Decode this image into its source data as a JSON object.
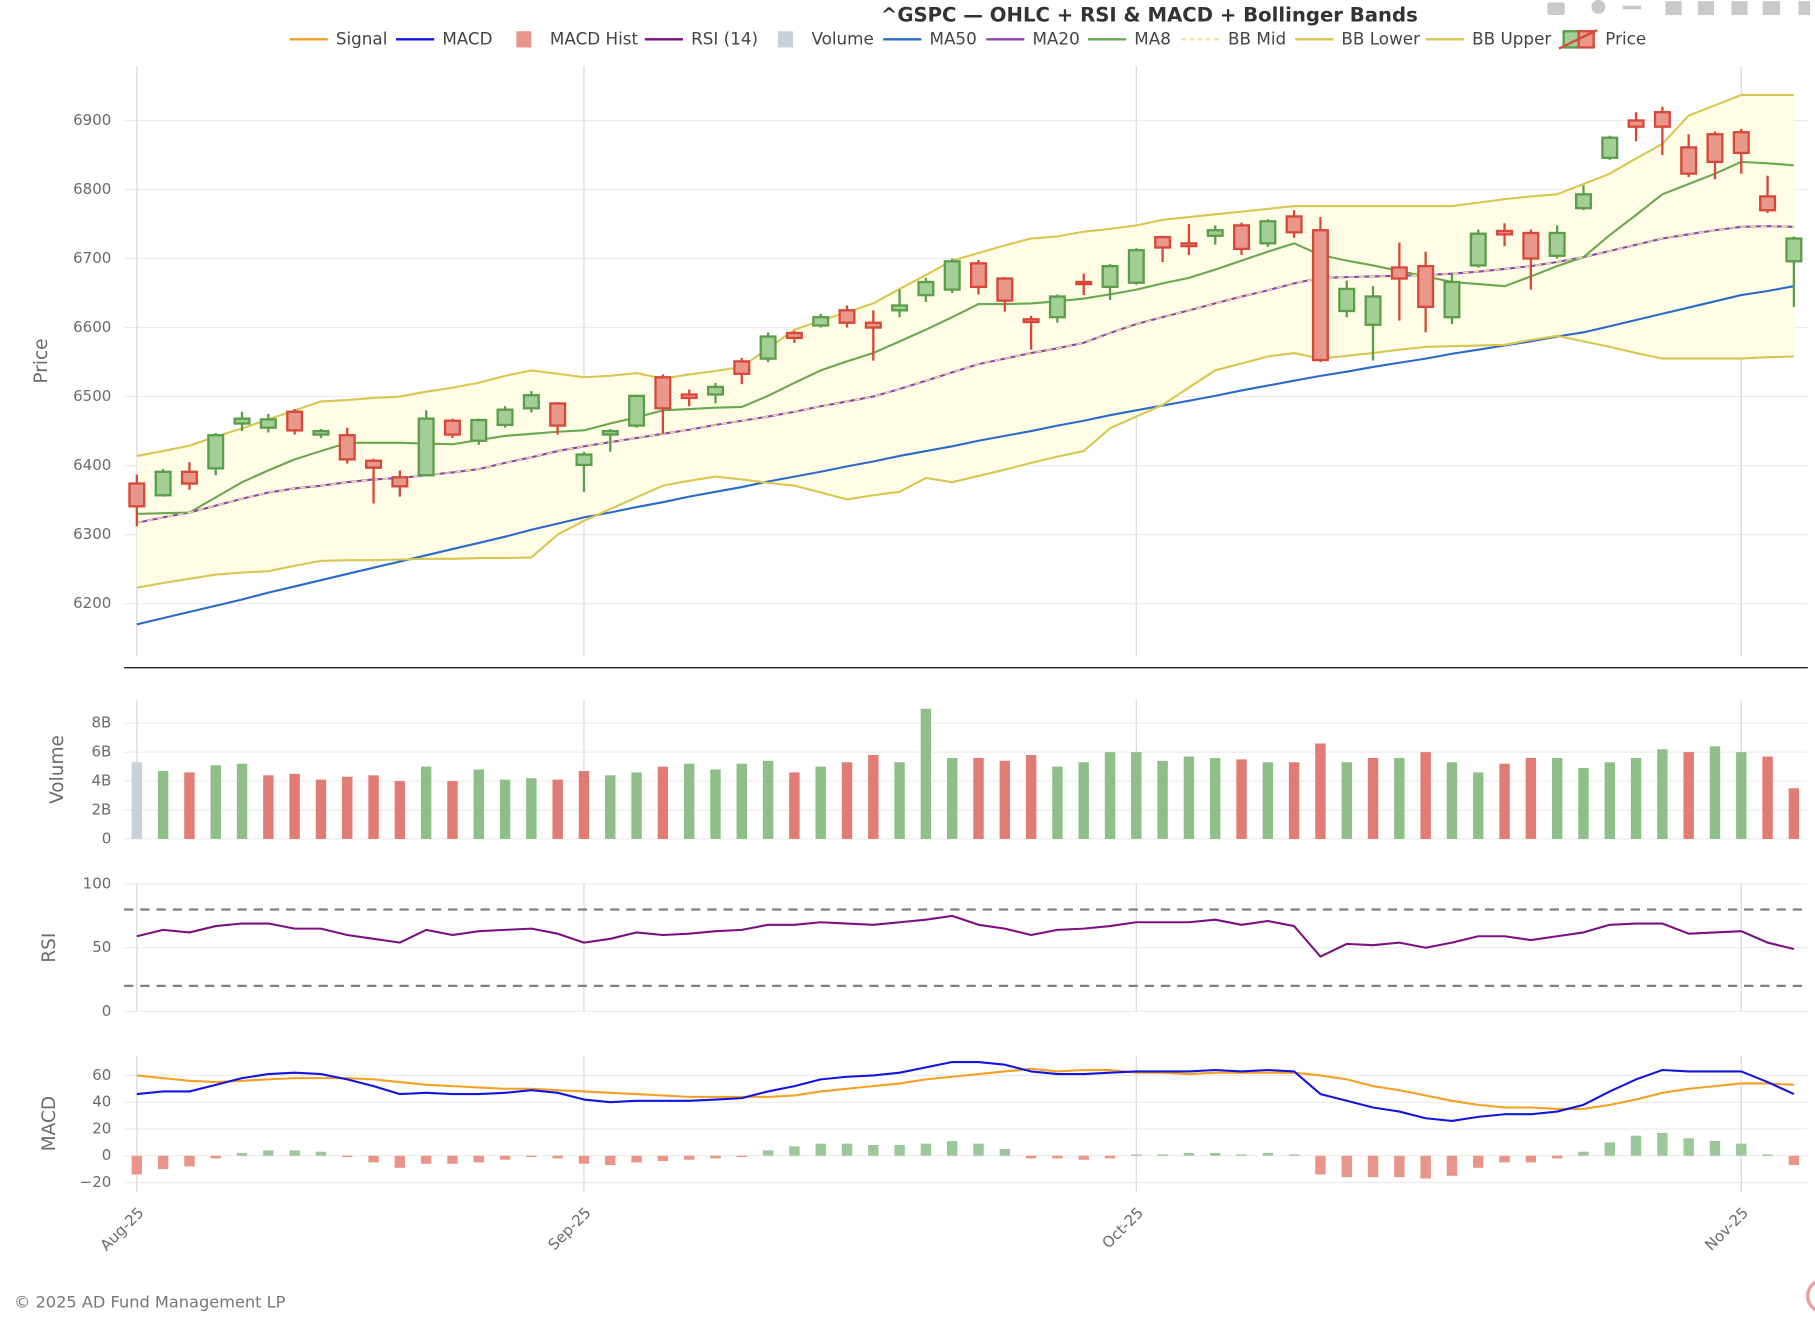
{
  "chart_data": {
    "type": "candlestick",
    "title": "^GSPC — OHLC + RSI & MACD + Bollinger Bands",
    "categories": [
      "Aug-25",
      null,
      null,
      null,
      null,
      null,
      null,
      null,
      null,
      null,
      null,
      null,
      null,
      null,
      null,
      null,
      null,
      "Sep-25",
      null,
      null,
      null,
      null,
      null,
      null,
      null,
      null,
      null,
      null,
      null,
      null,
      null,
      null,
      null,
      null,
      null,
      null,
      null,
      null,
      "Oct-25",
      null,
      null,
      null,
      null,
      null,
      null,
      null,
      null,
      null,
      null,
      null,
      null,
      null,
      null,
      null,
      null,
      null,
      null,
      null,
      null,
      null,
      null,
      "Nov-25",
      null,
      null
    ],
    "panels": {
      "price": {
        "ylabel": "Price",
        "ylim": [
          6124,
          6979
        ],
        "yticks": [
          6200,
          6300,
          6400,
          6500,
          6600,
          6700,
          6800,
          6900
        ],
        "band_fill": "#fffde6"
      },
      "volume": {
        "ylabel": "Volume",
        "ylim": [
          0,
          9.6
        ],
        "yticks": [
          0,
          {
            "value": 2,
            "label": "2B"
          },
          {
            "value": 4,
            "label": "4B"
          },
          {
            "value": 6,
            "label": "6B"
          },
          {
            "value": 8,
            "label": "8B"
          }
        ]
      },
      "rsi": {
        "ylabel": "RSI",
        "ylim": [
          0,
          100
        ],
        "yticks": [
          0,
          50,
          100
        ],
        "hlines": [
          20,
          80
        ]
      },
      "macd": {
        "ylabel": "MACD",
        "ylim": [
          -27,
          75
        ],
        "yticks": [
          {
            "value": -20,
            "label": "−20"
          },
          0,
          20,
          40,
          60
        ]
      }
    },
    "series": [
      {
        "name": "Signal",
        "panel": "macd",
        "kind": "line",
        "color": "#f5a020",
        "values": [
          60,
          58,
          56,
          55,
          56,
          57,
          58,
          58,
          58,
          57,
          55,
          53,
          52,
          51,
          50,
          50,
          49,
          48,
          47,
          46,
          45,
          44,
          44,
          44,
          44,
          45,
          48,
          50,
          52,
          54,
          57,
          59,
          61,
          63,
          65,
          63,
          64,
          64,
          62,
          62,
          61,
          62,
          62,
          62,
          62,
          60,
          57,
          52,
          49,
          45,
          41,
          38,
          36,
          36,
          35,
          35,
          38,
          42,
          47,
          50,
          52,
          54,
          54,
          53
        ]
      },
      {
        "name": "MACD",
        "panel": "macd",
        "kind": "line",
        "color": "#1414e0",
        "values": [
          46,
          48,
          48,
          53,
          58,
          61,
          62,
          61,
          57,
          52,
          46,
          47,
          46,
          46,
          47,
          49,
          47,
          42,
          40,
          41,
          41,
          41,
          42,
          43,
          48,
          52,
          57,
          59,
          60,
          62,
          66,
          70,
          70,
          68,
          63,
          61,
          61,
          62,
          63,
          63,
          63,
          64,
          63,
          64,
          63,
          46,
          41,
          36,
          33,
          28,
          26,
          29,
          31,
          31,
          33,
          38,
          48,
          57,
          64,
          63,
          63,
          63,
          55,
          46
        ]
      },
      {
        "name": "MACD Hist",
        "panel": "macd",
        "kind": "bar",
        "color": "#e8958a",
        "color_up": "#9cc79a",
        "color_down": "#e8958a",
        "values": [
          -14,
          -10,
          -8,
          -2,
          2,
          4,
          4,
          3,
          -1,
          -5,
          -9,
          -6,
          -6,
          -5,
          -3,
          -1,
          -2,
          -6,
          -7,
          -5,
          -4,
          -3,
          -2,
          -1,
          4,
          7,
          9,
          9,
          8,
          8,
          9,
          11,
          9,
          5,
          -2,
          -2,
          -3,
          -2,
          1,
          1,
          2,
          2,
          1,
          2,
          1,
          -14,
          -16,
          -16,
          -16,
          -17,
          -15,
          -9,
          -5,
          -5,
          -2,
          3,
          10,
          15,
          17,
          13,
          11,
          9,
          1,
          -7
        ]
      },
      {
        "name": "RSI (14)",
        "panel": "rsi",
        "kind": "line",
        "color": "#7b1180",
        "values": [
          59,
          64,
          62,
          67,
          69,
          69,
          65,
          65,
          60,
          57,
          54,
          64,
          60,
          63,
          64,
          65,
          61,
          54,
          57,
          62,
          60,
          61,
          63,
          64,
          68,
          68,
          70,
          69,
          68,
          70,
          72,
          75,
          68,
          65,
          60,
          64,
          65,
          67,
          70,
          70,
          70,
          72,
          68,
          71,
          67,
          43,
          53,
          52,
          54,
          50,
          54,
          59,
          59,
          56,
          59,
          62,
          68,
          69,
          69,
          61,
          62,
          63,
          54,
          49
        ]
      },
      {
        "name": "Volume",
        "panel": "volume",
        "kind": "bar",
        "color": "#c8d0d8",
        "color_up": "#8fbf88",
        "color_down": "#e07c74",
        "values": [
          5.3,
          4.7,
          4.6,
          5.1,
          5.2,
          4.4,
          4.5,
          4.1,
          4.3,
          4.4,
          4.0,
          5.0,
          4.0,
          4.8,
          4.1,
          4.2,
          4.1,
          4.7,
          4.4,
          4.6,
          5.0,
          5.2,
          4.8,
          5.2,
          5.4,
          4.6,
          5.0,
          5.3,
          5.8,
          5.3,
          9.0,
          5.6,
          5.6,
          5.4,
          5.8,
          5.0,
          5.3,
          6.0,
          6.0,
          5.4,
          5.7,
          5.6,
          5.5,
          5.3,
          5.3,
          6.6,
          5.3,
          5.6,
          5.6,
          6.0,
          5.3,
          4.6,
          5.2,
          5.6,
          5.6,
          4.9,
          5.3,
          5.6,
          6.2,
          6.0,
          6.4,
          6.0,
          5.7,
          3.5
        ]
      },
      {
        "name": "MA50",
        "panel": "price",
        "kind": "line",
        "color": "#2a6ac8",
        "values": [
          6170,
          6179,
          6188,
          6197,
          6206,
          6216,
          6225,
          6234,
          6243,
          6252,
          6261,
          6270,
          6279,
          6288,
          6297,
          6307,
          6316,
          6325,
          6332,
          6340,
          6347,
          6355,
          6362,
          6369,
          6377,
          6384,
          6391,
          6399,
          6406,
          6414,
          6421,
          6428,
          6436,
          6443,
          6450,
          6458,
          6465,
          6473,
          6480,
          6487,
          6494,
          6501,
          6509,
          6516,
          6523,
          6530,
          6536,
          6543,
          6549,
          6555,
          6562,
          6568,
          6574,
          6580,
          6587,
          6593,
          6602,
          6611,
          6620,
          6629,
          6638,
          6647,
          6653,
          6660
        ]
      },
      {
        "name": "MA20",
        "panel": "price",
        "kind": "line",
        "color": "#8e44ad",
        "values": [
          6317,
          6325,
          6332,
          6342,
          6352,
          6361,
          6367,
          6371,
          6376,
          6380,
          6382,
          6386,
          6390,
          6395,
          6404,
          6412,
          6421,
          6428,
          6434,
          6440,
          6446,
          6452,
          6459,
          6465,
          6471,
          6478,
          6486,
          6493,
          6500,
          6511,
          6523,
          6535,
          6547,
          6555,
          6563,
          6570,
          6578,
          6592,
          6605,
          6615,
          6625,
          6635,
          6645,
          6654,
          6664,
          6672,
          6673,
          6674,
          6675,
          6676,
          6678,
          6681,
          6685,
          6689,
          6695,
          6702,
          6711,
          6720,
          6729,
          6735,
          6741,
          6746,
          6747,
          6746
        ]
      },
      {
        "name": "MA8",
        "panel": "price",
        "kind": "line",
        "color": "#6aa84f",
        "values": [
          6330,
          6331,
          6332,
          6354,
          6376,
          6393,
          6409,
          6421,
          6433,
          6433,
          6433,
          6432,
          6431,
          6437,
          6443,
          6446,
          6449,
          6451,
          6461,
          6470,
          6480,
          6482,
          6484,
          6485,
          6501,
          6520,
          6538,
          6551,
          6563,
          6580,
          6597,
          6615,
          6634,
          6634,
          6635,
          6638,
          6642,
          6648,
          6655,
          6664,
          6672,
          6684,
          6697,
          6710,
          6722,
          6705,
          6697,
          6690,
          6682,
          6674,
          6666,
          6663,
          6660,
          6674,
          6689,
          6702,
          6734,
          6763,
          6793,
          6808,
          6823,
          6840,
          6838,
          6835
        ]
      },
      {
        "name": "BB Mid",
        "panel": "price",
        "kind": "line",
        "color": "#ece3a8",
        "dash": true,
        "values": [
          6317,
          6325,
          6332,
          6342,
          6352,
          6361,
          6367,
          6371,
          6376,
          6380,
          6382,
          6386,
          6390,
          6395,
          6404,
          6412,
          6421,
          6428,
          6434,
          6440,
          6446,
          6452,
          6459,
          6465,
          6471,
          6478,
          6486,
          6493,
          6500,
          6511,
          6523,
          6535,
          6547,
          6555,
          6563,
          6570,
          6578,
          6592,
          6605,
          6615,
          6625,
          6635,
          6645,
          6654,
          6664,
          6672,
          6673,
          6674,
          6675,
          6676,
          6678,
          6681,
          6685,
          6689,
          6695,
          6702,
          6711,
          6720,
          6729,
          6735,
          6741,
          6746,
          6747,
          6746
        ]
      },
      {
        "name": "BB Lower",
        "panel": "price",
        "kind": "line",
        "color": "#d9c650",
        "band": "lower",
        "values": [
          6223,
          6230,
          6236,
          6242,
          6245,
          6247,
          6255,
          6262,
          6263,
          6263,
          6264,
          6265,
          6265,
          6266,
          6266,
          6267,
          6300,
          6320,
          6337,
          6354,
          6371,
          6378,
          6384,
          6380,
          6375,
          6371,
          6361,
          6351,
          6357,
          6362,
          6382,
          6376,
          6385,
          6394,
          6404,
          6413,
          6421,
          6454,
          6471,
          6488,
          6513,
          6538,
          6548,
          6558,
          6563,
          6555,
          6559,
          6563,
          6568,
          6572,
          6573,
          6574,
          6575,
          6582,
          6588,
          6580,
          6572,
          6563,
          6555,
          6555,
          6555,
          6555,
          6557,
          6558
        ]
      },
      {
        "name": "BB Upper",
        "panel": "price",
        "kind": "line",
        "color": "#d9c650",
        "band": "upper",
        "values": [
          6414,
          6421,
          6429,
          6442,
          6454,
          6467,
          6480,
          6493,
          6495,
          6498,
          6500,
          6507,
          6513,
          6520,
          6530,
          6538,
          6533,
          6528,
          6530,
          6534,
          6526,
          6532,
          6537,
          6543,
          6570,
          6597,
          6610,
          6622,
          6635,
          6656,
          6676,
          6697,
          6708,
          6719,
          6729,
          6732,
          6739,
          6743,
          6748,
          6756,
          6760,
          6764,
          6768,
          6772,
          6776,
          6776,
          6776,
          6776,
          6776,
          6776,
          6776,
          6781,
          6786,
          6790,
          6793,
          6808,
          6823,
          6845,
          6866,
          6907,
          6922,
          6937,
          6937,
          6937
        ]
      },
      {
        "name": "Price",
        "panel": "price",
        "kind": "candlestick",
        "fill_up": "#a3cf97",
        "stroke_up": "#5a9e4b",
        "fill_down": "#e9968b",
        "stroke_down": "#d6493a",
        "open": [
          6374,
          6357,
          6391,
          6396,
          6461,
          6455,
          6478,
          6445,
          6444,
          6407,
          6383,
          6386,
          6465,
          6436,
          6459,
          6483,
          6490,
          6401,
          6445,
          6458,
          6528,
          6503,
          6503,
          6551,
          6555,
          6592,
          6603,
          6625,
          6607,
          6625,
          6647,
          6655,
          6693,
          6671,
          6612,
          6615,
          6666,
          6659,
          6665,
          6731,
          6722,
          6733,
          6748,
          6722,
          6761,
          6741,
          6624,
          6604,
          6687,
          6689,
          6615,
          6690,
          6740,
          6737,
          6704,
          6773,
          6846,
          6900,
          6912,
          6861,
          6880,
          6883,
          6790,
          6696
        ],
        "high": [
          6387,
          6395,
          6405,
          6447,
          6478,
          6475,
          6482,
          6453,
          6455,
          6410,
          6393,
          6480,
          6468,
          6468,
          6486,
          6508,
          6492,
          6420,
          6453,
          6503,
          6532,
          6510,
          6520,
          6556,
          6593,
          6595,
          6620,
          6632,
          6625,
          6655,
          6672,
          6700,
          6698,
          6673,
          6617,
          6648,
          6678,
          6692,
          6715,
          6733,
          6750,
          6748,
          6752,
          6757,
          6770,
          6760,
          6668,
          6660,
          6723,
          6710,
          6678,
          6742,
          6751,
          6742,
          6748,
          6806,
          6878,
          6912,
          6920,
          6880,
          6884,
          6888,
          6820,
          6732
        ],
        "low": [
          6312,
          6355,
          6365,
          6386,
          6450,
          6448,
          6445,
          6440,
          6403,
          6345,
          6355,
          6385,
          6440,
          6430,
          6455,
          6477,
          6445,
          6362,
          6420,
          6455,
          6446,
          6486,
          6490,
          6518,
          6550,
          6578,
          6600,
          6600,
          6552,
          6615,
          6637,
          6650,
          6648,
          6623,
          6568,
          6607,
          6647,
          6640,
          6662,
          6695,
          6705,
          6720,
          6705,
          6717,
          6730,
          6550,
          6615,
          6552,
          6610,
          6593,
          6605,
          6687,
          6718,
          6655,
          6700,
          6770,
          6843,
          6870,
          6850,
          6818,
          6815,
          6823,
          6766,
          6630
        ],
        "close": [
          6341,
          6391,
          6374,
          6444,
          6468,
          6467,
          6451,
          6450,
          6409,
          6397,
          6370,
          6468,
          6445,
          6466,
          6481,
          6502,
          6458,
          6416,
          6450,
          6501,
          6483,
          6498,
          6514,
          6533,
          6587,
          6585,
          6615,
          6607,
          6600,
          6632,
          6666,
          6696,
          6659,
          6639,
          6608,
          6645,
          6663,
          6689,
          6712,
          6716,
          6718,
          6741,
          6714,
          6754,
          6738,
          6553,
          6656,
          6645,
          6671,
          6630,
          6666,
          6736,
          6735,
          6700,
          6737,
          6793,
          6875,
          6891,
          6891,
          6823,
          6840,
          6853,
          6770,
          6729
        ]
      }
    ]
  },
  "footer": "© 2025 AD Fund Management LP"
}
